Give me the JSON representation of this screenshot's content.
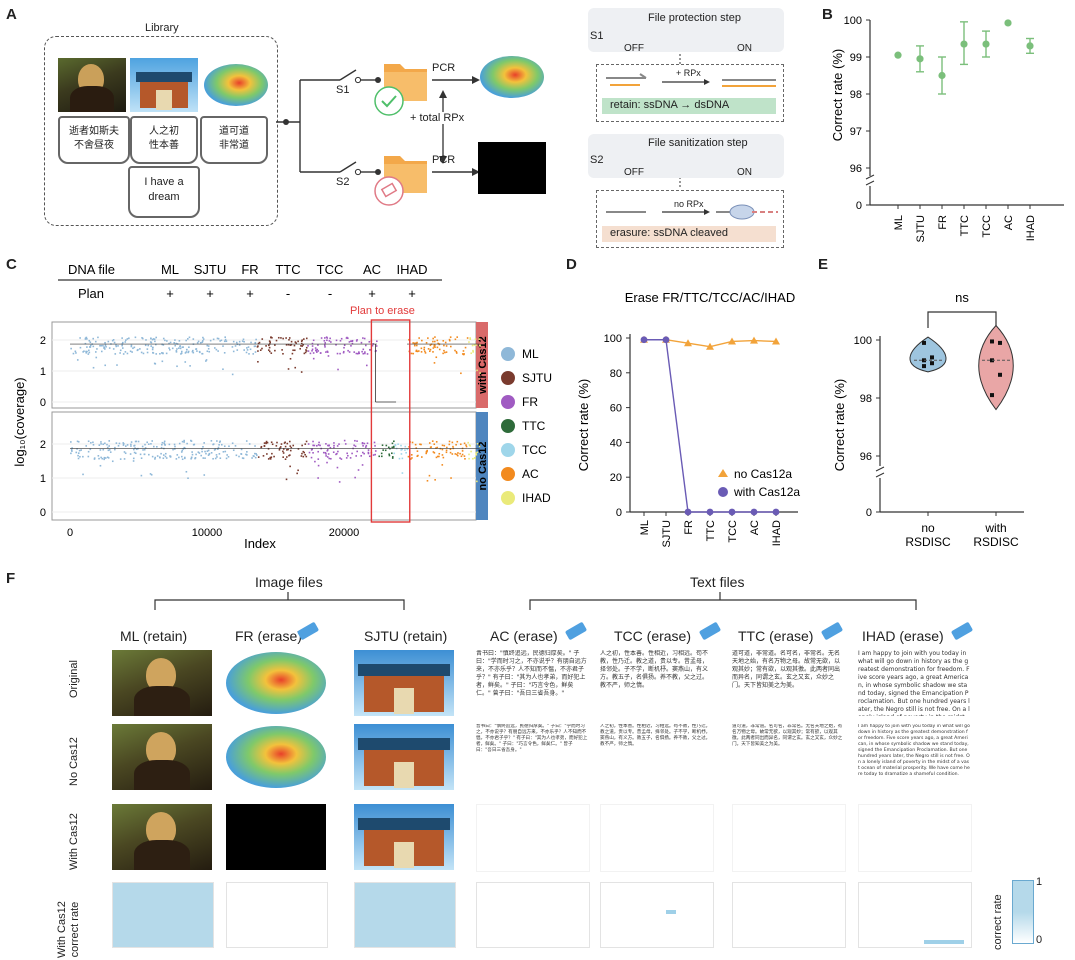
{
  "panels": {
    "A": "A",
    "B": "B",
    "C": "C",
    "D": "D",
    "E": "E",
    "F": "F"
  },
  "panelA": {
    "library_title": "Library",
    "books": [
      "逝者如斯夫\n不舍昼夜",
      "人之初\n性本善",
      "道可道\n非常道",
      "I have a\ndream"
    ],
    "s1": "S1",
    "s2": "S2",
    "pcr1": "PCR",
    "pcr2": "PCR",
    "total_rpx": "+ total RPx",
    "protection_title": "File protection step",
    "sanitization_title": "File sanitization step",
    "off": "OFF",
    "on": "ON",
    "plus_rpx": "+ RPx",
    "no_rpx": "no RPx",
    "retain_label": "retain:  ssDNA → dsDNA",
    "erasure_label": "erasure:  ssDNA cleaved"
  },
  "panelB": {
    "chart_data": {
      "type": "scatter",
      "categories": [
        "ML",
        "SJTU",
        "FR",
        "TTC",
        "TCC",
        "AC",
        "IHAD"
      ],
      "mean": [
        99.05,
        98.95,
        98.5,
        99.35,
        99.35,
        99.92,
        99.3
      ],
      "err_low": [
        99.05,
        98.6,
        98.0,
        98.8,
        99.0,
        99.92,
        99.1
      ],
      "err_high": [
        99.05,
        99.3,
        99.0,
        99.95,
        99.7,
        99.92,
        99.5
      ],
      "ylabel": "Correct rate (%)",
      "yticks": [
        "100",
        "99",
        "98",
        "97",
        "96",
        "0"
      ],
      "color": "#7bbf7b"
    }
  },
  "panelC": {
    "table_header": [
      "DNA file",
      "ML",
      "SJTU",
      "FR",
      "TTC",
      "TCC",
      "AC",
      "IHAD"
    ],
    "plan_row": [
      "Plan",
      "+",
      "+",
      "+",
      "-",
      "-",
      "+",
      "+"
    ],
    "plan_to_erase": "Plan to erase",
    "ylabel": "log₁₀(coverage)",
    "xlabel": "Index",
    "xticks": [
      "0",
      "10000",
      "20000"
    ],
    "yticks": [
      "2",
      "1",
      "0"
    ],
    "strip_top": "with Cas12",
    "strip_bottom": "no Cas12",
    "legend": [
      {
        "name": "ML",
        "color": "#8fb8d8"
      },
      {
        "name": "SJTU",
        "color": "#7a3b2e"
      },
      {
        "name": "FR",
        "color": "#a05bc2"
      },
      {
        "name": "TTC",
        "color": "#2e6b3a"
      },
      {
        "name": "TCC",
        "color": "#9fd6ea"
      },
      {
        "name": "AC",
        "color": "#f28a1e"
      },
      {
        "name": "IHAD",
        "color": "#eaea7a"
      }
    ]
  },
  "panelD": {
    "chart_data": {
      "type": "line",
      "title": "Erase FR/TTC/TCC/AC/IHAD",
      "categories": [
        "ML",
        "SJTU",
        "FR",
        "TTC",
        "TCC",
        "AC",
        "IHAD"
      ],
      "series": [
        {
          "name": "no Cas12a",
          "values": [
            99,
            99,
            97,
            95,
            98,
            98.5,
            98
          ],
          "color": "#f2a33a"
        },
        {
          "name": "with Cas12a",
          "values": [
            99,
            99,
            0,
            0,
            0,
            0,
            0
          ],
          "color": "#6a5bb5"
        }
      ],
      "ylabel": "Correct rate (%)",
      "ylim": [
        0,
        100
      ],
      "yticks": [
        "0",
        "20",
        "40",
        "60",
        "80",
        "100"
      ]
    }
  },
  "panelE": {
    "ns": "ns",
    "ylabel": "Correct rate (%)",
    "yticks": [
      "100",
      "98",
      "96",
      "0"
    ],
    "groups": [
      "no\nRSDISC",
      "with\nRSDISC"
    ],
    "colors": [
      "#9ec5df",
      "#e9a6a6"
    ]
  },
  "panelF": {
    "image_files": "Image files",
    "text_files": "Text files",
    "columns": [
      "ML (retain)",
      "FR (erase)",
      "SJTU (retain)",
      "AC (erase)",
      "TCC (erase)",
      "TTC (erase)",
      "IHAD (erase)"
    ],
    "rows": [
      "Original",
      "No Cas12",
      "With Cas12",
      "With Cas12\ncorrect rate"
    ],
    "colorbar_label": "correct rate",
    "colorbar_ticks": [
      "1",
      "0"
    ],
    "text_ac": "晋书曰：\"慎终追远，民德归厚矣。\" 子曰：\"学而时习之，不亦说乎？有朋自远方来，不亦乐乎？人不知而不愠，不亦君子乎？\" 有子曰：\"其为人也孝弟，而好犯上者，鲜矣。\" 子曰：\"巧言令色，鲜矣仁。\" 曾子曰：\"吾日三省吾身。\"",
    "text_tcc": "人之初，性本善。性相近，习相远。苟不教，性乃迁。教之道，贵以专。昔孟母，择邻处。子不学，断机杼。窦燕山，有义方。教五子，名俱扬。养不教，父之过。教不严，师之惰。",
    "text_ttc": "道可道，非常道。名可名，非常名。无名天地之始，有名万物之母。故常无欲，以观其妙；常有欲，以观其徼。此两者同出而异名，同谓之玄。玄之又玄，众妙之门。天下皆知美之为美。",
    "text_ihad": "I am happy to join with you today in what will go down in history as the greatest demonstration for freedom. Five score years ago, a great American, in whose symbolic shadow we stand today, signed the Emancipation Proclamation. But one hundred years later, the Negro still is not free. On a lonely island of poverty in the midst of a vast ocean of material prosperity. We have come here today to dramatize a shameful condition."
  }
}
